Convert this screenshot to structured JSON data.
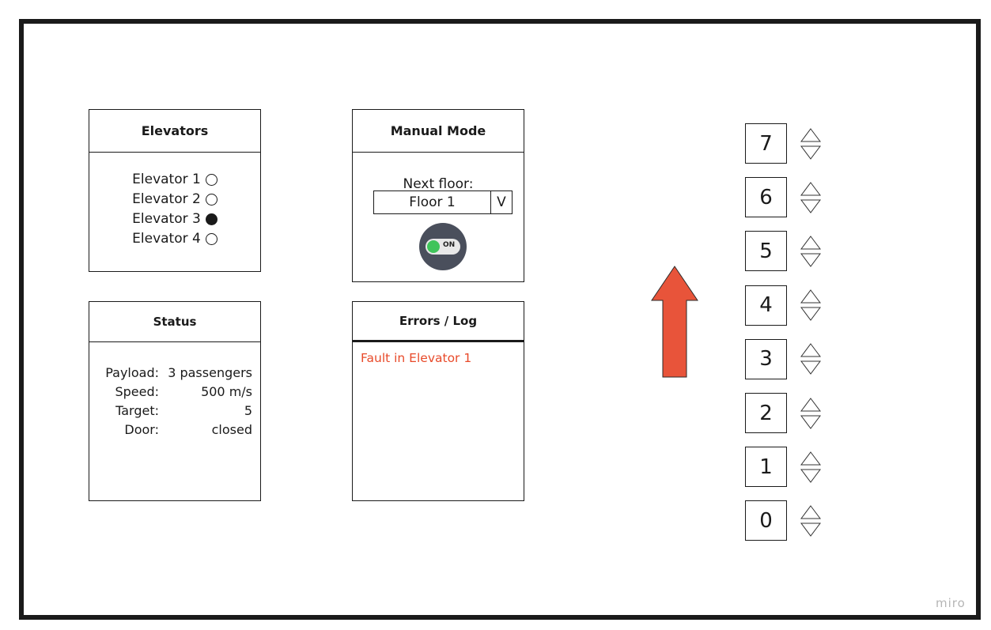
{
  "elevators_panel": {
    "title": "Elevators",
    "items": [
      {
        "label": "Elevator 1",
        "selected": false
      },
      {
        "label": "Elevator 2",
        "selected": false
      },
      {
        "label": "Elevator 3",
        "selected": true
      },
      {
        "label": "Elevator 4",
        "selected": false
      }
    ]
  },
  "manual_panel": {
    "title": "Manual Mode",
    "next_floor_label": "Next floor:",
    "selected_floor": "Floor 1",
    "dropdown_button": "V",
    "toggle_label": "ON",
    "toggle_on": true
  },
  "status_panel": {
    "title": "Status",
    "rows": [
      {
        "key": "Payload:",
        "value": "3 passengers"
      },
      {
        "key": "Speed:",
        "value": "500 m/s"
      },
      {
        "key": "Target:",
        "value": "5"
      },
      {
        "key": "Door:",
        "value": "closed"
      }
    ]
  },
  "log_panel": {
    "title": "Errors / Log",
    "entries": [
      "Fault in Elevator 1"
    ]
  },
  "direction": {
    "icon": "up-arrow-icon",
    "color": "#e8543a"
  },
  "floors": [
    "7",
    "6",
    "5",
    "4",
    "3",
    "2",
    "1",
    "0"
  ],
  "watermark": "miro"
}
